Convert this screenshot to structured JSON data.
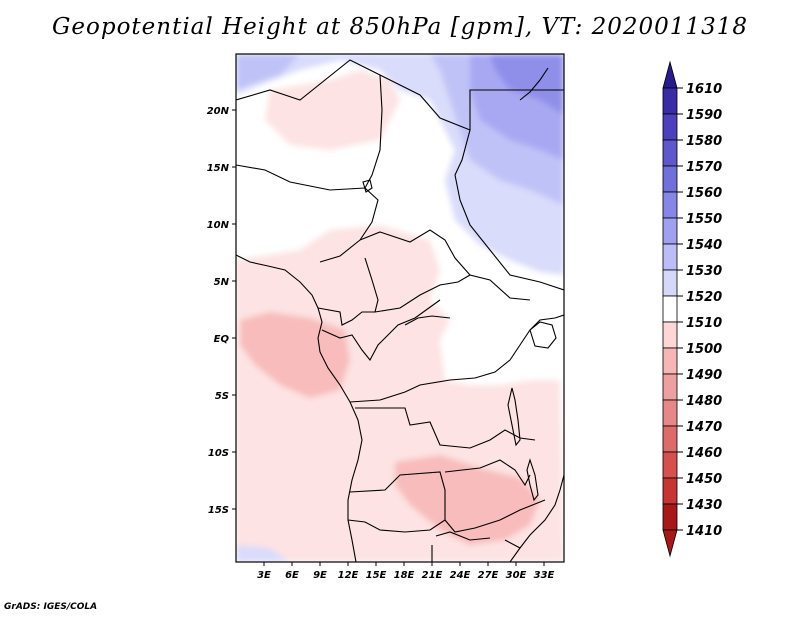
{
  "title": "Geopotential Height at 850hPa [gpm], VT: 2020011318",
  "credit": "GrADS: IGES/COLA",
  "map": {
    "lat_ticks": [
      "20N",
      "15N",
      "10N",
      "5N",
      "EQ",
      "5S",
      "10S",
      "15S"
    ],
    "lon_ticks": [
      "3E",
      "6E",
      "9E",
      "12E",
      "15E",
      "18E",
      "21E",
      "24E",
      "27E",
      "30E",
      "33E"
    ]
  },
  "colorbar": {
    "levels": [
      "1610",
      "1590",
      "1580",
      "1570",
      "1560",
      "1550",
      "1540",
      "1530",
      "1520",
      "1510",
      "1500",
      "1490",
      "1480",
      "1470",
      "1460",
      "1450",
      "1430",
      "1410"
    ],
    "colors": [
      "#281c8c",
      "#3a2ca6",
      "#4c40bc",
      "#5e58cc",
      "#7070dc",
      "#8686e8",
      "#a0a0f0",
      "#bcbcf6",
      "#d6d8fa",
      "#ffffff",
      "#fdd6d6",
      "#f6b6b6",
      "#eda0a0",
      "#e68888",
      "#de6a6a",
      "#d65050",
      "#c83434",
      "#a81818"
    ]
  }
}
